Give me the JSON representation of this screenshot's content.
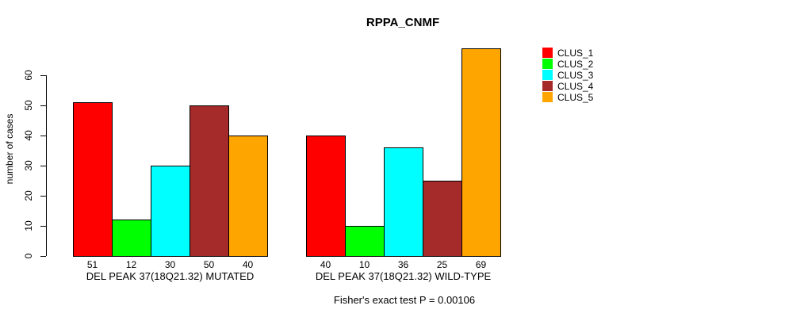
{
  "chart_data": {
    "type": "bar",
    "title": "RPPA_CNMF",
    "ylabel": "number of cases",
    "xlabel": "",
    "ylim": [
      0,
      60
    ],
    "yticks": [
      0,
      10,
      20,
      30,
      40,
      50,
      60
    ],
    "grid": false,
    "legend_position": "right",
    "categories": [
      "DEL PEAK 37(18Q21.32) MUTATED",
      "DEL PEAK 37(18Q21.32) WILD-TYPE"
    ],
    "series": [
      {
        "name": "CLUS_1",
        "color": "#FF0000",
        "values": [
          51,
          40
        ]
      },
      {
        "name": "CLUS_2",
        "color": "#00FF00",
        "values": [
          12,
          10
        ]
      },
      {
        "name": "CLUS_3",
        "color": "#00FFFF",
        "values": [
          30,
          36
        ]
      },
      {
        "name": "CLUS_4",
        "color": "#A52A2A",
        "values": [
          50,
          25
        ]
      },
      {
        "name": "CLUS_5",
        "color": "#FFA500",
        "values": [
          40,
          69
        ]
      }
    ],
    "bar_value_labels_shown": true,
    "annotation": "Fisher's exact test P = 0.00106"
  }
}
